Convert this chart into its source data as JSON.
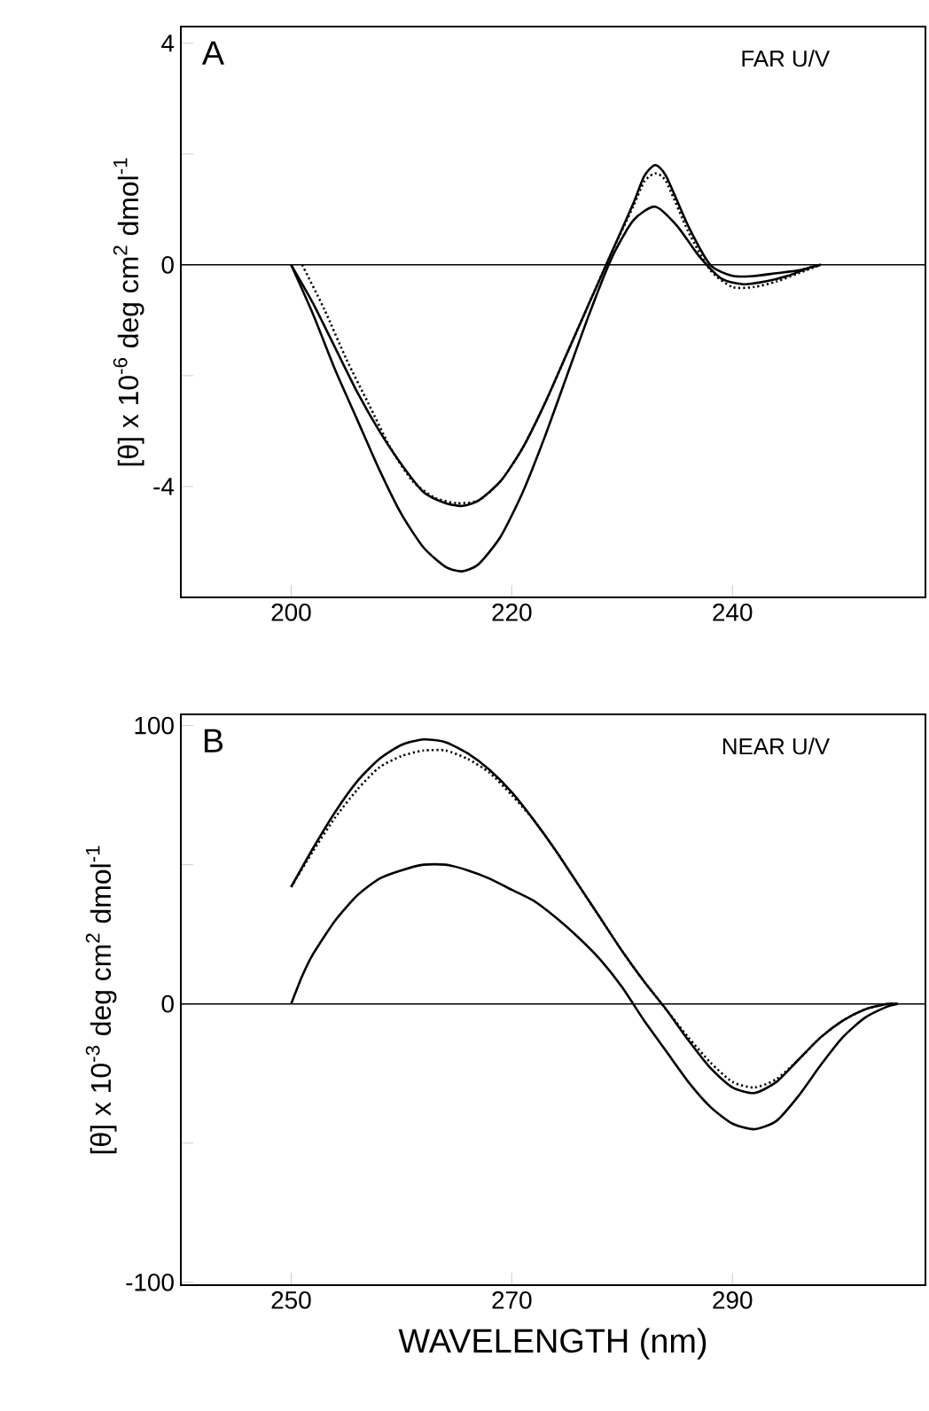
{
  "chart_data": [
    {
      "type": "line",
      "ylabel": "[θ] x 10$^{-6}$ deg cm$^{2}$ dmol$^{-1}$",
      "annotations": [
        "A",
        "FAR U/V"
      ],
      "xlim": [
        190,
        257.5
      ],
      "ylim": [
        -6,
        4.3
      ],
      "xticks": [
        200,
        220,
        240
      ],
      "yticks": [
        -4,
        {
          "value": -2,
          "label": null
        },
        0,
        {
          "value": 2,
          "label": null
        },
        4
      ],
      "ref_lines": [
        {
          "axis": "y",
          "value": 0
        }
      ],
      "series": [
        {
          "color": "#000000",
          "line_style": "solid",
          "x": [
            200,
            202,
            204,
            206,
            208,
            210,
            212,
            214,
            215.5,
            217,
            219,
            221,
            223,
            225,
            227,
            229,
            231,
            233,
            235,
            237,
            239,
            241,
            243,
            245,
            247,
            248
          ],
          "values": [
            0,
            -0.9,
            -1.9,
            -2.8,
            -3.7,
            -4.5,
            -5.1,
            -5.45,
            -5.53,
            -5.4,
            -4.9,
            -4.1,
            -3.1,
            -2.0,
            -0.9,
            0.1,
            0.8,
            1.05,
            0.7,
            0.15,
            -0.25,
            -0.35,
            -0.3,
            -0.2,
            -0.05,
            0
          ]
        },
        {
          "color": "#000000",
          "line_style": "solid",
          "x": [
            200,
            202,
            204,
            206,
            208,
            210,
            212,
            214,
            215.5,
            217,
            219,
            221,
            223,
            225,
            227,
            229,
            231,
            232,
            233,
            234,
            236,
            238,
            240,
            242,
            244,
            246,
            248
          ],
          "values": [
            0,
            -0.7,
            -1.5,
            -2.3,
            -3.0,
            -3.6,
            -4.1,
            -4.3,
            -4.35,
            -4.25,
            -3.9,
            -3.3,
            -2.5,
            -1.6,
            -0.7,
            0.2,
            1.1,
            1.6,
            1.8,
            1.6,
            0.7,
            0.0,
            -0.2,
            -0.2,
            -0.15,
            -0.1,
            0
          ]
        },
        {
          "color": "#000000",
          "line_style": "dotted",
          "x": [
            201,
            203,
            205,
            207,
            209,
            211,
            213,
            215,
            217,
            219,
            221,
            223,
            225,
            227,
            229,
            231,
            232,
            233,
            234,
            236,
            238,
            240,
            242,
            244,
            246,
            248
          ],
          "values": [
            0,
            -0.8,
            -1.7,
            -2.5,
            -3.3,
            -3.9,
            -4.2,
            -4.3,
            -4.25,
            -3.9,
            -3.3,
            -2.5,
            -1.6,
            -0.7,
            0.2,
            1.05,
            1.5,
            1.65,
            1.5,
            0.6,
            -0.1,
            -0.4,
            -0.4,
            -0.3,
            -0.15,
            0
          ]
        }
      ]
    },
    {
      "type": "line",
      "xlabel": "WAVELENGTH (nm)",
      "ylabel": "[θ] x 10$^{-3}$ deg cm$^{2}$ dmol$^{-1}$",
      "annotations": [
        "B",
        "NEAR U/V"
      ],
      "xlim": [
        240,
        307.5
      ],
      "ylim": [
        -101,
        104
      ],
      "xticks": [
        250,
        270,
        290
      ],
      "yticks": [
        -100,
        {
          "value": -50,
          "label": null
        },
        0,
        {
          "value": 50,
          "label": null
        },
        100
      ],
      "ref_lines": [
        {
          "axis": "y",
          "value": 0
        }
      ],
      "series": [
        {
          "color": "#000000",
          "line_style": "solid",
          "x": [
            250,
            252,
            254,
            256,
            258,
            260,
            262,
            264,
            266,
            268,
            270,
            272,
            274,
            276,
            278,
            280,
            282,
            284,
            286,
            288,
            290,
            292,
            294,
            296,
            298,
            300,
            302,
            304,
            305
          ],
          "values": [
            42,
            56,
            69,
            80,
            88,
            93,
            95,
            94,
            90,
            84,
            76,
            66,
            55,
            43,
            31,
            19,
            8,
            -2,
            -13,
            -23,
            -30,
            -32,
            -28,
            -20,
            -12,
            -6,
            -2,
            0,
            0
          ]
        },
        {
          "color": "#000000",
          "line_style": "dotted",
          "x": [
            250,
            252,
            254,
            256,
            258,
            260,
            262,
            264,
            266,
            268,
            270,
            272,
            274,
            276,
            278,
            280,
            282,
            284,
            286,
            288,
            290,
            292,
            294,
            296,
            298,
            300,
            302,
            304,
            305
          ],
          "values": [
            42,
            55,
            67,
            77,
            85,
            89,
            91,
            91,
            88,
            83,
            75,
            66,
            55,
            43,
            31,
            19,
            8,
            -2,
            -12,
            -21,
            -28,
            -30,
            -27,
            -20,
            -12,
            -6,
            -2,
            0,
            0
          ]
        },
        {
          "color": "#000000",
          "line_style": "solid",
          "x": [
            250,
            251,
            252,
            254,
            256,
            258,
            260,
            262,
            264,
            266,
            268,
            270,
            272,
            274,
            276,
            278,
            280,
            282,
            284,
            286,
            288,
            290,
            292,
            294,
            296,
            298,
            300,
            302,
            304,
            305
          ],
          "values": [
            0,
            10,
            18,
            30,
            39,
            45,
            48,
            50,
            50,
            48,
            45,
            41,
            37,
            31,
            24,
            16,
            6,
            -6,
            -17,
            -28,
            -37,
            -43,
            -45,
            -42,
            -33,
            -22,
            -12,
            -5,
            -1,
            0
          ]
        }
      ]
    }
  ]
}
